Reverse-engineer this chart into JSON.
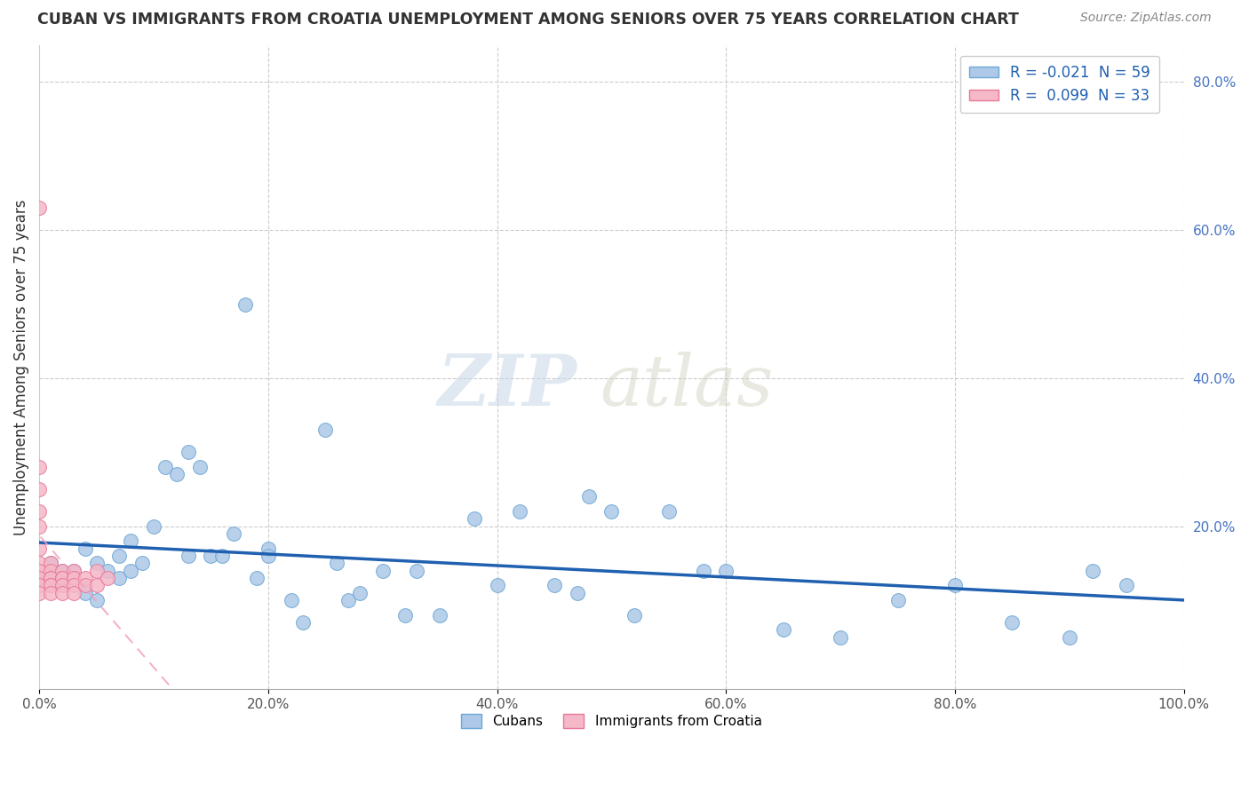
{
  "title": "CUBAN VS IMMIGRANTS FROM CROATIA UNEMPLOYMENT AMONG SENIORS OVER 75 YEARS CORRELATION CHART",
  "source": "Source: ZipAtlas.com",
  "ylabel": "Unemployment Among Seniors over 75 years",
  "xlim": [
    0.0,
    1.0
  ],
  "ylim": [
    -0.02,
    0.85
  ],
  "xticks": [
    0.0,
    0.2,
    0.4,
    0.6,
    0.8,
    1.0
  ],
  "xticklabels": [
    "0.0%",
    "20.0%",
    "40.0%",
    "60.0%",
    "80.0%",
    "100.0%"
  ],
  "yticks_right": [
    0.2,
    0.4,
    0.6,
    0.8
  ],
  "yticklabels_right": [
    "20.0%",
    "40.0%",
    "60.0%",
    "80.0%"
  ],
  "legend_label1": "R = -0.021  N = 59",
  "legend_label2": "R =  0.099  N = 33",
  "cuban_color": "#adc8e8",
  "croatia_color": "#f5b8c8",
  "cuban_edge": "#6fa8d4",
  "croatia_edge": "#e8789a",
  "trend_cuban_color": "#2060b0",
  "trend_croatia_color": "#f0a0b8",
  "watermark_zip": "ZIP",
  "watermark_atlas": "atlas",
  "bottom_label1": "Cubans",
  "bottom_label2": "Immigrants from Croatia",
  "cubans_x": [
    0.0,
    0.01,
    0.01,
    0.02,
    0.02,
    0.03,
    0.03,
    0.04,
    0.04,
    0.05,
    0.05,
    0.06,
    0.07,
    0.07,
    0.08,
    0.08,
    0.09,
    0.1,
    0.11,
    0.12,
    0.13,
    0.13,
    0.14,
    0.15,
    0.16,
    0.17,
    0.18,
    0.19,
    0.2,
    0.2,
    0.22,
    0.23,
    0.25,
    0.26,
    0.27,
    0.28,
    0.3,
    0.32,
    0.33,
    0.35,
    0.38,
    0.4,
    0.42,
    0.45,
    0.47,
    0.48,
    0.5,
    0.52,
    0.55,
    0.58,
    0.6,
    0.65,
    0.7,
    0.75,
    0.8,
    0.85,
    0.9,
    0.92,
    0.95
  ],
  "cubans_y": [
    0.13,
    0.15,
    0.12,
    0.14,
    0.12,
    0.13,
    0.14,
    0.11,
    0.17,
    0.1,
    0.15,
    0.14,
    0.16,
    0.13,
    0.18,
    0.14,
    0.15,
    0.2,
    0.28,
    0.27,
    0.3,
    0.16,
    0.28,
    0.16,
    0.16,
    0.19,
    0.5,
    0.13,
    0.17,
    0.16,
    0.1,
    0.07,
    0.33,
    0.15,
    0.1,
    0.11,
    0.14,
    0.08,
    0.14,
    0.08,
    0.21,
    0.12,
    0.22,
    0.12,
    0.11,
    0.24,
    0.22,
    0.08,
    0.22,
    0.14,
    0.14,
    0.06,
    0.05,
    0.1,
    0.12,
    0.07,
    0.05,
    0.14,
    0.12
  ],
  "croatia_x": [
    0.0,
    0.0,
    0.0,
    0.0,
    0.0,
    0.0,
    0.0,
    0.0,
    0.0,
    0.0,
    0.0,
    0.01,
    0.01,
    0.01,
    0.01,
    0.01,
    0.01,
    0.01,
    0.02,
    0.02,
    0.02,
    0.02,
    0.02,
    0.03,
    0.03,
    0.03,
    0.03,
    0.03,
    0.04,
    0.04,
    0.05,
    0.05,
    0.06
  ],
  "croatia_y": [
    0.63,
    0.28,
    0.25,
    0.22,
    0.2,
    0.17,
    0.15,
    0.14,
    0.13,
    0.12,
    0.11,
    0.15,
    0.14,
    0.13,
    0.13,
    0.12,
    0.12,
    0.11,
    0.14,
    0.13,
    0.13,
    0.12,
    0.11,
    0.14,
    0.13,
    0.13,
    0.12,
    0.11,
    0.13,
    0.12,
    0.14,
    0.12,
    0.13
  ]
}
